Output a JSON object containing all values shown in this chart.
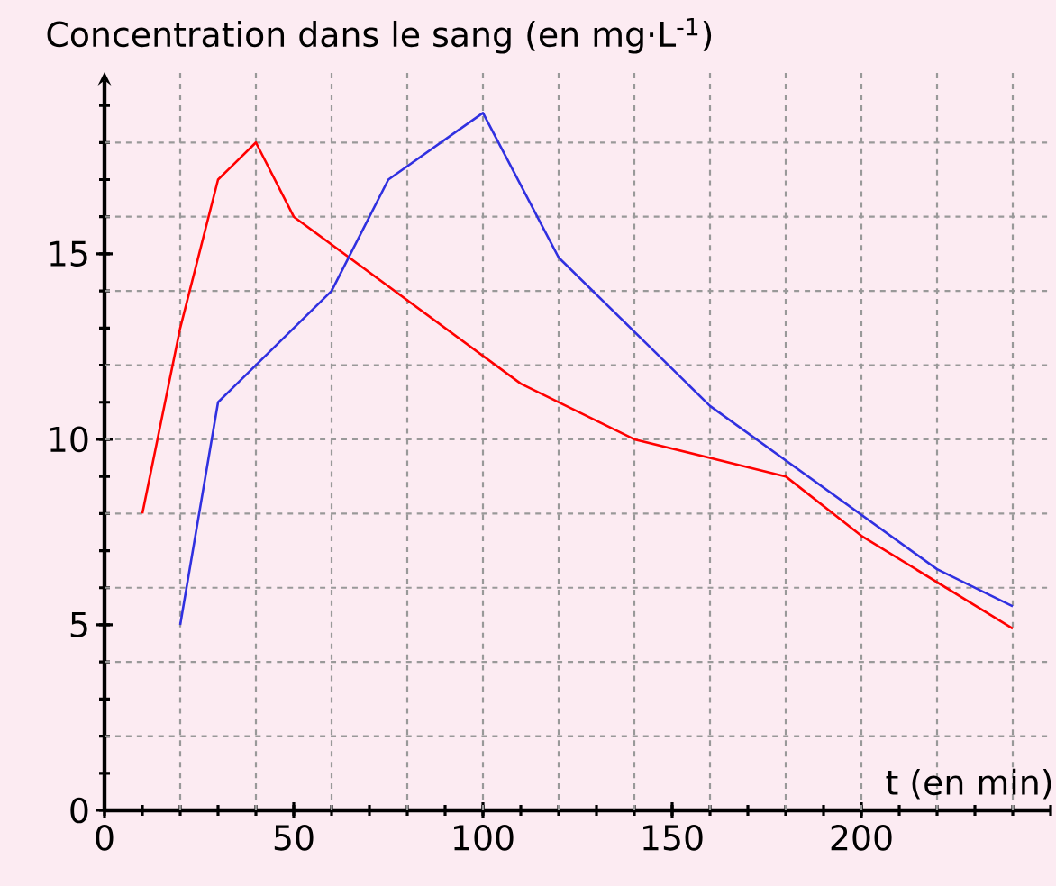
{
  "chart_data": {
    "type": "line",
    "ylabel": "Concentration dans le sang (en mg·L$^{-1}$)",
    "xlabel": "t (en min)",
    "xlim": [
      0,
      250
    ],
    "ylim": [
      0,
      19.9
    ],
    "xticks": [
      0,
      50,
      100,
      150,
      200
    ],
    "yticks": [
      0,
      5,
      10,
      15
    ],
    "grid": true,
    "marker": "none",
    "line_style": "solid",
    "series": [
      {
        "color": "#ff0000",
        "x": [
          10,
          20,
          30,
          40,
          50,
          110,
          140,
          180,
          200,
          240
        ],
        "values": [
          8,
          13,
          17,
          18,
          16,
          11.5,
          10,
          9,
          7.4,
          4.9
        ]
      },
      {
        "color": "#3030e0",
        "x": [
          20,
          30,
          60,
          75,
          100,
          120,
          160,
          220,
          240
        ],
        "values": [
          5,
          11,
          14,
          17,
          18.8,
          14.9,
          10.9,
          6.5,
          5.5
        ]
      }
    ]
  }
}
